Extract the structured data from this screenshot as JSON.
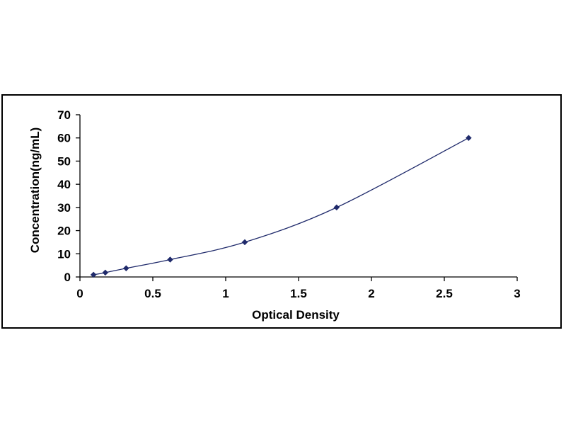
{
  "chart_data": {
    "type": "scatter",
    "title": "",
    "xlabel": "Optical Density",
    "ylabel": "Concentration(ng/mL)",
    "xlim": [
      0,
      3
    ],
    "ylim": [
      0,
      70
    ],
    "x_ticks": [
      "0",
      "0.5",
      "1",
      "1.5",
      "2",
      "2.5",
      "3"
    ],
    "y_ticks": [
      "0",
      "10",
      "20",
      "30",
      "40",
      "50",
      "60",
      "70"
    ],
    "grid": false,
    "legend": "none",
    "series": [
      {
        "x": [
          0.093,
          0.174,
          0.317,
          0.619,
          1.131,
          1.761,
          2.667
        ],
        "y": [
          0.94,
          1.88,
          3.75,
          7.5,
          15,
          30,
          60
        ],
        "marker": "diamond",
        "color": "#1f2a6b",
        "fit": "smooth-curve"
      }
    ]
  }
}
